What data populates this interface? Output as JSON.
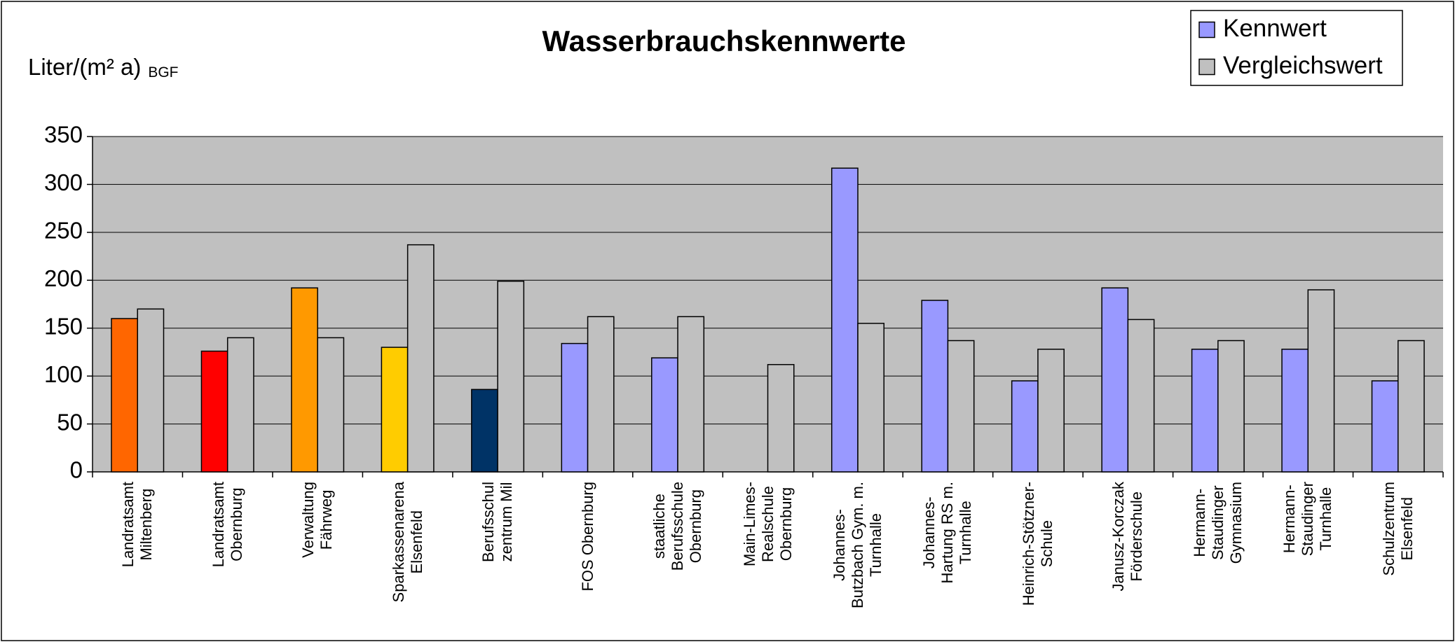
{
  "chart_data": {
    "type": "bar",
    "title": "Wasserbrauchskennwerte",
    "y_label": "Liter/(m² a)",
    "y_label_sub": "BGF",
    "categories": [
      "Landratsamt\nMiltenberg",
      "Landratsamt\nObernburg",
      "Verwaltung\nFährweg",
      "Sparkassenarena\nElsenfeld",
      "Berufsschul\nzentrum Mil",
      "FOS Obernburg",
      "staatliche\nBerufsschule\nObernburg",
      "Main-Limes-\nRealschule\nObernburg",
      "Johannes-\nButzbach Gym. m.\nTurnhalle",
      "Johannes-\nHartung RS m.\nTurnhalle",
      "Heinrich-Stötzner-\nSchule",
      "Janusz-Korczak\nFörderschule",
      "Hermann-\nStaudinger\nGymnasium",
      "Hermann-\nStaudinger\nTurnhalle",
      "Schulzentrum\nElsenfeld"
    ],
    "series": [
      {
        "name": "Kennwert",
        "color": "#9999ff",
        "colors": [
          "#ff6600",
          "#ff0000",
          "#ff9900",
          "#ffcc00",
          "#003366",
          "#9999ff",
          "#9999ff",
          "#9999ff",
          "#9999ff",
          "#9999ff",
          "#9999ff",
          "#9999ff",
          "#9999ff",
          "#9999ff",
          "#9999ff"
        ],
        "values": [
          160,
          126,
          192,
          130,
          86,
          134,
          119,
          null,
          317,
          179,
          95,
          192,
          128,
          128,
          95
        ]
      },
      {
        "name": "Vergleichswert",
        "color": "#c0c0c0",
        "values": [
          170,
          140,
          140,
          237,
          199,
          162,
          162,
          112,
          155,
          137,
          128,
          159,
          137,
          190,
          137
        ]
      }
    ],
    "ylim": [
      0,
      350
    ],
    "yticks": [
      0,
      50,
      100,
      150,
      200,
      250,
      300,
      350
    ],
    "grid": true,
    "legend": "top-right",
    "plot_background": "#c0c0c0"
  }
}
